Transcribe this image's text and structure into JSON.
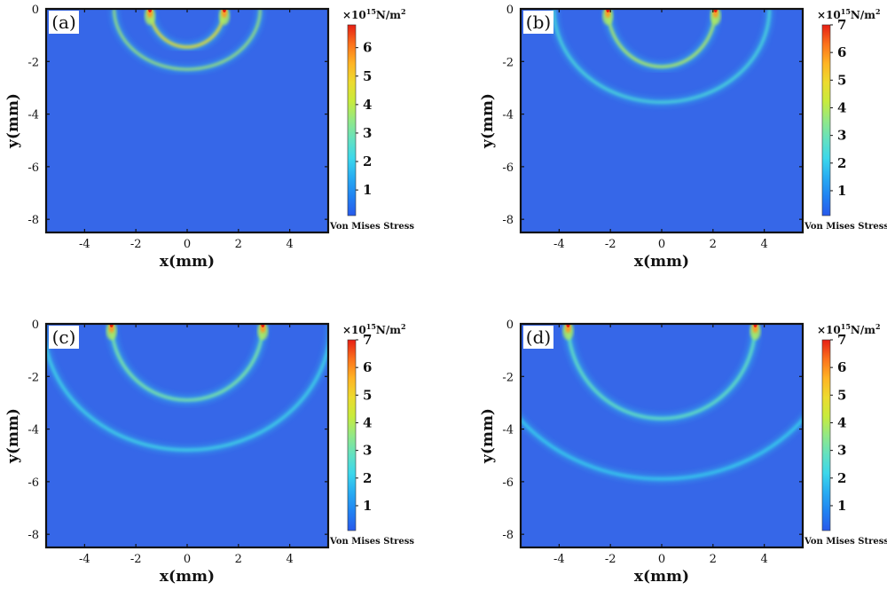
{
  "chart_data": [
    {
      "type": "heatmap",
      "panel_label": "(a)",
      "xlabel": "x(mm)",
      "ylabel": "y(mm)",
      "xlim": [
        -5.5,
        5.5
      ],
      "ylim": [
        -8.5,
        0
      ],
      "x_ticks": [
        -4,
        -2,
        0,
        2,
        4
      ],
      "y_ticks": [
        0,
        -2,
        -4,
        -6,
        -8
      ],
      "colorbar": {
        "label": "Von Mises Stress",
        "unit_prefix": "×10",
        "unit_exponent": "15",
        "unit_suffix": "N/m",
        "unit_suffix_exp": "2",
        "ticks": [
          1,
          2,
          3,
          4,
          5,
          6
        ],
        "max": 6.8
      },
      "wavefronts": [
        {
          "kind": "inner",
          "center_x": 0,
          "radius_x": 1.45,
          "depth": 1.45,
          "intensity": 4.6
        },
        {
          "kind": "outer",
          "center_x": 0,
          "radius_x": 2.85,
          "depth": 2.3,
          "intensity": 3.6
        }
      ],
      "sources_x": [
        -1.45,
        1.45
      ]
    },
    {
      "type": "heatmap",
      "panel_label": "(b)",
      "xlabel": "x(mm)",
      "ylabel": "y(mm)",
      "xlim": [
        -5.5,
        5.5
      ],
      "ylim": [
        -8.5,
        0
      ],
      "x_ticks": [
        -4,
        -2,
        0,
        2,
        4
      ],
      "y_ticks": [
        0,
        -2,
        -4,
        -6,
        -8
      ],
      "colorbar": {
        "label": "Von Mises Stress",
        "unit_prefix": "×10",
        "unit_exponent": "15",
        "unit_suffix": "N/m",
        "unit_suffix_exp": "2",
        "ticks": [
          1,
          2,
          3,
          4,
          5,
          6,
          7
        ],
        "max": 7
      },
      "wavefronts": [
        {
          "kind": "inner",
          "center_x": 0,
          "radius_x": 2.1,
          "depth": 2.2,
          "intensity": 3.8
        },
        {
          "kind": "outer",
          "center_x": 0,
          "radius_x": 4.2,
          "depth": 3.55,
          "intensity": 2.4
        }
      ],
      "sources_x": [
        -2.1,
        2.1
      ]
    },
    {
      "type": "heatmap",
      "panel_label": "(c)",
      "xlabel": "x(mm)",
      "ylabel": "y(mm)",
      "xlim": [
        -5.5,
        5.5
      ],
      "ylim": [
        -8.5,
        0
      ],
      "x_ticks": [
        -4,
        -2,
        0,
        2,
        4
      ],
      "y_ticks": [
        0,
        -2,
        -4,
        -6,
        -8
      ],
      "colorbar": {
        "label": "Von Mises Stress",
        "unit_prefix": "×10",
        "unit_exponent": "15",
        "unit_suffix": "N/m",
        "unit_suffix_exp": "2",
        "ticks": [
          1,
          2,
          3,
          4,
          5,
          6,
          7
        ],
        "max": 7
      },
      "wavefronts": [
        {
          "kind": "inner",
          "center_x": 0,
          "radius_x": 2.95,
          "depth": 2.9,
          "intensity": 3.2
        },
        {
          "kind": "outer",
          "center_x": 0,
          "radius_x": 5.6,
          "depth": 4.8,
          "intensity": 2.2
        }
      ],
      "sources_x": [
        -2.95,
        2.95
      ]
    },
    {
      "type": "heatmap",
      "panel_label": "(d)",
      "xlabel": "x(mm)",
      "ylabel": "y(mm)",
      "xlim": [
        -5.5,
        5.5
      ],
      "ylim": [
        -8.5,
        0
      ],
      "x_ticks": [
        -4,
        -2,
        0,
        2,
        4
      ],
      "y_ticks": [
        0,
        -2,
        -4,
        -6,
        -8
      ],
      "colorbar": {
        "label": "Von Mises Stress",
        "unit_prefix": "×10",
        "unit_exponent": "15",
        "unit_suffix": "N/m",
        "unit_suffix_exp": "2",
        "ticks": [
          1,
          2,
          3,
          4,
          5,
          6,
          7
        ],
        "max": 7
      },
      "wavefronts": [
        {
          "kind": "inner",
          "center_x": 0,
          "radius_x": 3.65,
          "depth": 3.6,
          "intensity": 2.8
        },
        {
          "kind": "outer",
          "center_x": 0,
          "radius_x": 7.0,
          "depth": 5.9,
          "intensity": 2.0
        }
      ],
      "sources_x": [
        -3.65,
        3.65
      ]
    }
  ]
}
